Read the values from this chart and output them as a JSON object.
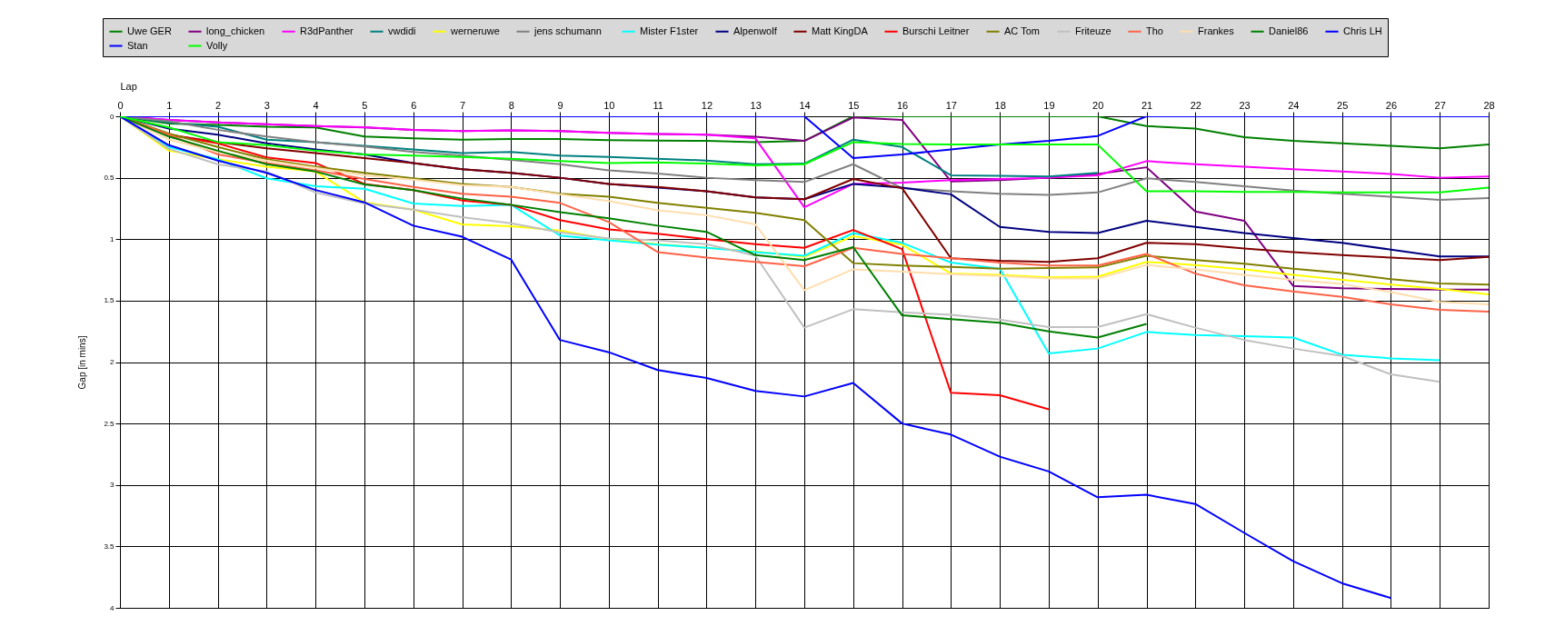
{
  "chart_data": {
    "type": "line",
    "xlabel": "Lap",
    "ylabel": "Gap [in mins]",
    "x": [
      0,
      1,
      2,
      3,
      4,
      5,
      6,
      7,
      8,
      9,
      10,
      11,
      12,
      13,
      14,
      15,
      16,
      17,
      18,
      19,
      20,
      21,
      22,
      23,
      24,
      25,
      26,
      27,
      28
    ],
    "xlim": [
      0,
      28
    ],
    "xticks": [
      0,
      1,
      2,
      3,
      4,
      5,
      6,
      7,
      8,
      9,
      10,
      11,
      12,
      13,
      14,
      15,
      16,
      17,
      18,
      19,
      20,
      21,
      22,
      23,
      24,
      25,
      26,
      27,
      28
    ],
    "ylim": [
      4,
      0
    ],
    "yticks": [
      0,
      0.5,
      1,
      1.5,
      2,
      2.5,
      3,
      3.5,
      4
    ],
    "grid": true,
    "legend": "top",
    "marker": "none",
    "line_style": "solid",
    "series": [
      {
        "name": "Uwe GER",
        "color": "#008000",
        "values": [
          0,
          0.06,
          0.07,
          0.085,
          0.09,
          0.165,
          0.18,
          0.19,
          0.185,
          0.185,
          0.195,
          0.197,
          0.2,
          0.21,
          0.2,
          0,
          0,
          0,
          0,
          0,
          0,
          0.08,
          0.1,
          0.17,
          0.2,
          0.22,
          0.24,
          0.26,
          0.23
        ]
      },
      {
        "name": "long_chicken",
        "color": "#800080",
        "values": [
          0,
          0.03,
          0.05,
          0.065,
          0.08,
          0.09,
          0.11,
          0.12,
          0.115,
          0.12,
          0.135,
          0.145,
          0.15,
          0.167,
          0.2,
          0.01,
          0.03,
          0.53,
          0.52,
          0.5,
          0.47,
          0.415,
          0.775,
          0.85,
          1.38,
          1.4,
          1.405,
          1.41,
          1.41
        ]
      },
      {
        "name": "R3dPanther",
        "color": "#ff00ff",
        "values": [
          0,
          0.03,
          0.05,
          0.065,
          0.08,
          0.088,
          0.11,
          0.12,
          0.115,
          0.12,
          0.135,
          0.145,
          0.15,
          0.18,
          0.74,
          0.55,
          0.54,
          0.52,
          0.51,
          0.5,
          0.48,
          0.365,
          0.39,
          0.41,
          0.43,
          0.45,
          0.47,
          0.5,
          0.49
        ]
      },
      {
        "name": "vwdidi",
        "color": "#008080",
        "values": [
          0,
          0.05,
          0.085,
          0.19,
          0.21,
          0.24,
          0.27,
          0.3,
          0.29,
          0.32,
          0.33,
          0.345,
          0.36,
          0.39,
          0.385,
          0.19,
          0.25,
          0.48,
          0.485,
          0.49,
          0.46,
          null,
          null,
          null,
          null,
          null,
          null,
          null,
          null
        ]
      },
      {
        "name": "werneruwe",
        "color": "#ffff00",
        "values": [
          0,
          0.28,
          0.35,
          0.41,
          0.45,
          0.7,
          0.76,
          0.88,
          0.895,
          0.93,
          1.0,
          1.04,
          1.07,
          1.1,
          1.145,
          0.975,
          1.045,
          1.28,
          1.29,
          1.31,
          1.305,
          1.185,
          1.21,
          1.245,
          1.29,
          1.33,
          1.37,
          1.405,
          1.45
        ]
      },
      {
        "name": "jens  schumann",
        "color": "#808080",
        "values": [
          0,
          0.04,
          0.11,
          0.165,
          0.21,
          0.245,
          0.29,
          0.32,
          0.355,
          0.39,
          0.44,
          0.465,
          0.5,
          0.52,
          0.535,
          0.39,
          0.585,
          0.61,
          0.63,
          0.64,
          0.62,
          0.505,
          0.535,
          0.57,
          0.605,
          0.63,
          0.655,
          0.68,
          0.665
        ]
      },
      {
        "name": "Mister F1ster",
        "color": "#00ffff",
        "values": [
          0,
          0.25,
          0.35,
          0.505,
          0.57,
          0.59,
          0.71,
          0.73,
          0.72,
          0.97,
          1.01,
          1.045,
          1.07,
          1.105,
          1.135,
          0.95,
          1.03,
          1.19,
          1.24,
          1.93,
          1.89,
          1.755,
          1.78,
          1.79,
          1.8,
          1.94,
          1.97,
          1.985,
          null
        ]
      },
      {
        "name": "Alpenwolf",
        "color": "#000080",
        "values": [
          0,
          0.1,
          0.15,
          0.22,
          0.27,
          0.31,
          0.38,
          0.43,
          0.46,
          0.5,
          0.55,
          0.58,
          0.61,
          0.66,
          0.675,
          0.55,
          0.58,
          0.635,
          0.9,
          0.94,
          0.95,
          0.85,
          0.9,
          0.95,
          0.99,
          1.03,
          1.085,
          1.14,
          1.14
        ]
      },
      {
        "name": "Matt KingDA",
        "color": "#800000",
        "values": [
          0,
          0.15,
          0.21,
          0.26,
          0.3,
          0.34,
          0.38,
          0.43,
          0.46,
          0.5,
          0.55,
          0.575,
          0.61,
          0.66,
          0.675,
          0.51,
          0.585,
          1.155,
          1.175,
          1.185,
          1.155,
          1.03,
          1.04,
          1.075,
          1.105,
          1.13,
          1.15,
          1.17,
          1.145
        ]
      },
      {
        "name": "Burschi Leitner",
        "color": "#ff0000",
        "values": [
          0,
          0.15,
          0.22,
          0.335,
          0.38,
          0.55,
          0.6,
          0.685,
          0.72,
          0.845,
          0.92,
          0.955,
          1.0,
          1.04,
          1.07,
          0.925,
          1.08,
          2.25,
          2.27,
          2.385,
          null,
          null,
          null,
          null,
          null,
          null,
          null,
          null,
          null
        ]
      },
      {
        "name": "AC Tom",
        "color": "#808000",
        "values": [
          0,
          0.14,
          0.25,
          0.35,
          0.41,
          0.46,
          0.505,
          0.55,
          0.575,
          0.63,
          0.655,
          0.705,
          0.745,
          0.785,
          0.845,
          1.195,
          1.215,
          1.225,
          1.24,
          1.235,
          1.23,
          1.135,
          1.17,
          1.2,
          1.24,
          1.275,
          1.325,
          1.36,
          1.37
        ]
      },
      {
        "name": "Friteuze",
        "color": "#c0c0c0",
        "values": [
          0,
          0.265,
          0.39,
          0.45,
          0.62,
          0.71,
          0.76,
          0.82,
          0.87,
          0.945,
          0.995,
          1.01,
          1.04,
          1.135,
          1.72,
          1.57,
          1.595,
          1.615,
          1.655,
          1.715,
          1.715,
          1.61,
          1.72,
          1.82,
          1.89,
          1.95,
          2.1,
          2.16,
          null
        ]
      },
      {
        "name": "Tho",
        "color": "#ff6347",
        "values": [
          0,
          0.15,
          0.31,
          0.38,
          0.44,
          0.51,
          0.575,
          0.63,
          0.655,
          0.705,
          0.86,
          1.105,
          1.15,
          1.185,
          1.22,
          1.07,
          1.12,
          1.155,
          1.19,
          1.215,
          1.215,
          1.12,
          1.28,
          1.375,
          1.425,
          1.47,
          1.53,
          1.575,
          1.59
        ]
      },
      {
        "name": "Frankes",
        "color": "#ffdead",
        "values": [
          0,
          0.19,
          0.29,
          0.36,
          0.42,
          0.48,
          0.515,
          0.56,
          0.575,
          0.635,
          0.69,
          0.765,
          0.805,
          0.88,
          1.415,
          1.245,
          1.265,
          1.285,
          1.3,
          1.32,
          1.32,
          1.21,
          1.245,
          1.29,
          1.33,
          1.365,
          1.43,
          1.51,
          1.53
        ]
      },
      {
        "name": "Daniel86",
        "color": "#008000",
        "values": [
          0,
          0.165,
          0.28,
          0.39,
          0.45,
          0.555,
          0.6,
          0.67,
          0.72,
          0.78,
          0.83,
          0.89,
          0.94,
          1.13,
          1.17,
          1.065,
          1.62,
          1.65,
          1.68,
          1.75,
          1.8,
          1.69,
          null,
          null,
          null,
          null,
          null,
          null,
          null
        ]
      },
      {
        "name": "Chris LH",
        "color": "#0000ff",
        "values": [
          0,
          0,
          0,
          0,
          0,
          0,
          0,
          0,
          0,
          0,
          0,
          0,
          0,
          0,
          0,
          0.34,
          0.31,
          0.27,
          0.23,
          0.2,
          0.16,
          0,
          0,
          0,
          0,
          0,
          0,
          0,
          0
        ]
      },
      {
        "name": "Stan",
        "color": "#0000ff",
        "values": [
          0,
          0.235,
          0.36,
          0.46,
          0.6,
          0.7,
          0.89,
          0.98,
          1.165,
          1.82,
          1.92,
          2.065,
          2.13,
          2.235,
          2.28,
          2.17,
          2.5,
          2.59,
          2.77,
          2.89,
          3.1,
          3.08,
          3.155,
          3.39,
          3.62,
          3.8,
          3.92,
          null,
          null
        ]
      },
      {
        "name": "Volly",
        "color": "#00ff00",
        "values": [
          0,
          0.09,
          0.21,
          0.235,
          0.28,
          0.31,
          0.32,
          0.33,
          0.345,
          0.365,
          0.38,
          0.375,
          0.385,
          0.4,
          0.39,
          0.21,
          0.225,
          0.23,
          0.23,
          0.23,
          0.23,
          0.61,
          0.61,
          0.615,
          0.615,
          0.62,
          0.62,
          0.62,
          0.58
        ]
      }
    ]
  }
}
